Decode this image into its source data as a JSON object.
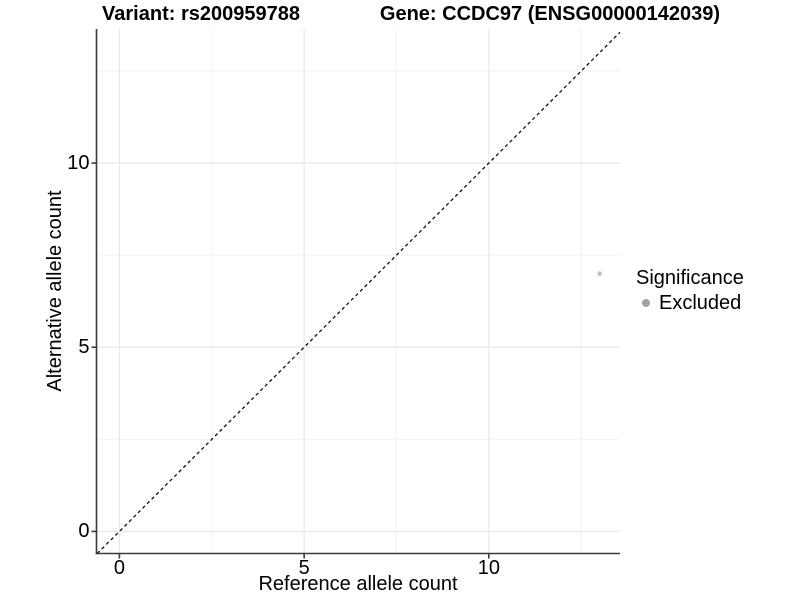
{
  "chart_data": {
    "type": "scatter",
    "title_left": "Variant: rs200959788",
    "title_right": "Gene: CCDC97 (ENSG00000142039)",
    "xlabel": "Reference allele count",
    "ylabel": "Alternative allele count",
    "x_ticks": [
      0,
      5,
      10
    ],
    "y_ticks": [
      0,
      5,
      10
    ],
    "x_minor_ticks": [
      2.5,
      7.5,
      12.5
    ],
    "y_minor_ticks": [
      2.5,
      7.5,
      12.5
    ],
    "xlim": [
      -0.62,
      13.55
    ],
    "ylim": [
      -0.6,
      13.64
    ],
    "grid": "major+minor",
    "identity_line": {
      "equation": "y = x",
      "style": "dashed",
      "color": "#111111"
    },
    "points": [
      {
        "x": 13,
        "y": 7,
        "significance": "Excluded"
      }
    ],
    "legend": {
      "title": "Significance",
      "position": "right",
      "entries": [
        {
          "label": "Excluded",
          "marker": "circle",
          "color": "#a3a3a3"
        }
      ]
    },
    "style": {
      "background": "#ffffff",
      "axis_line_color": "#3a3a3a",
      "grid_major_color": "#e6e6e6",
      "grid_minor_color": "#f2f2f2",
      "point_color": "#c2c2c2",
      "point_radius": 2.3,
      "legend_key_color": "#a3a3a3"
    }
  }
}
